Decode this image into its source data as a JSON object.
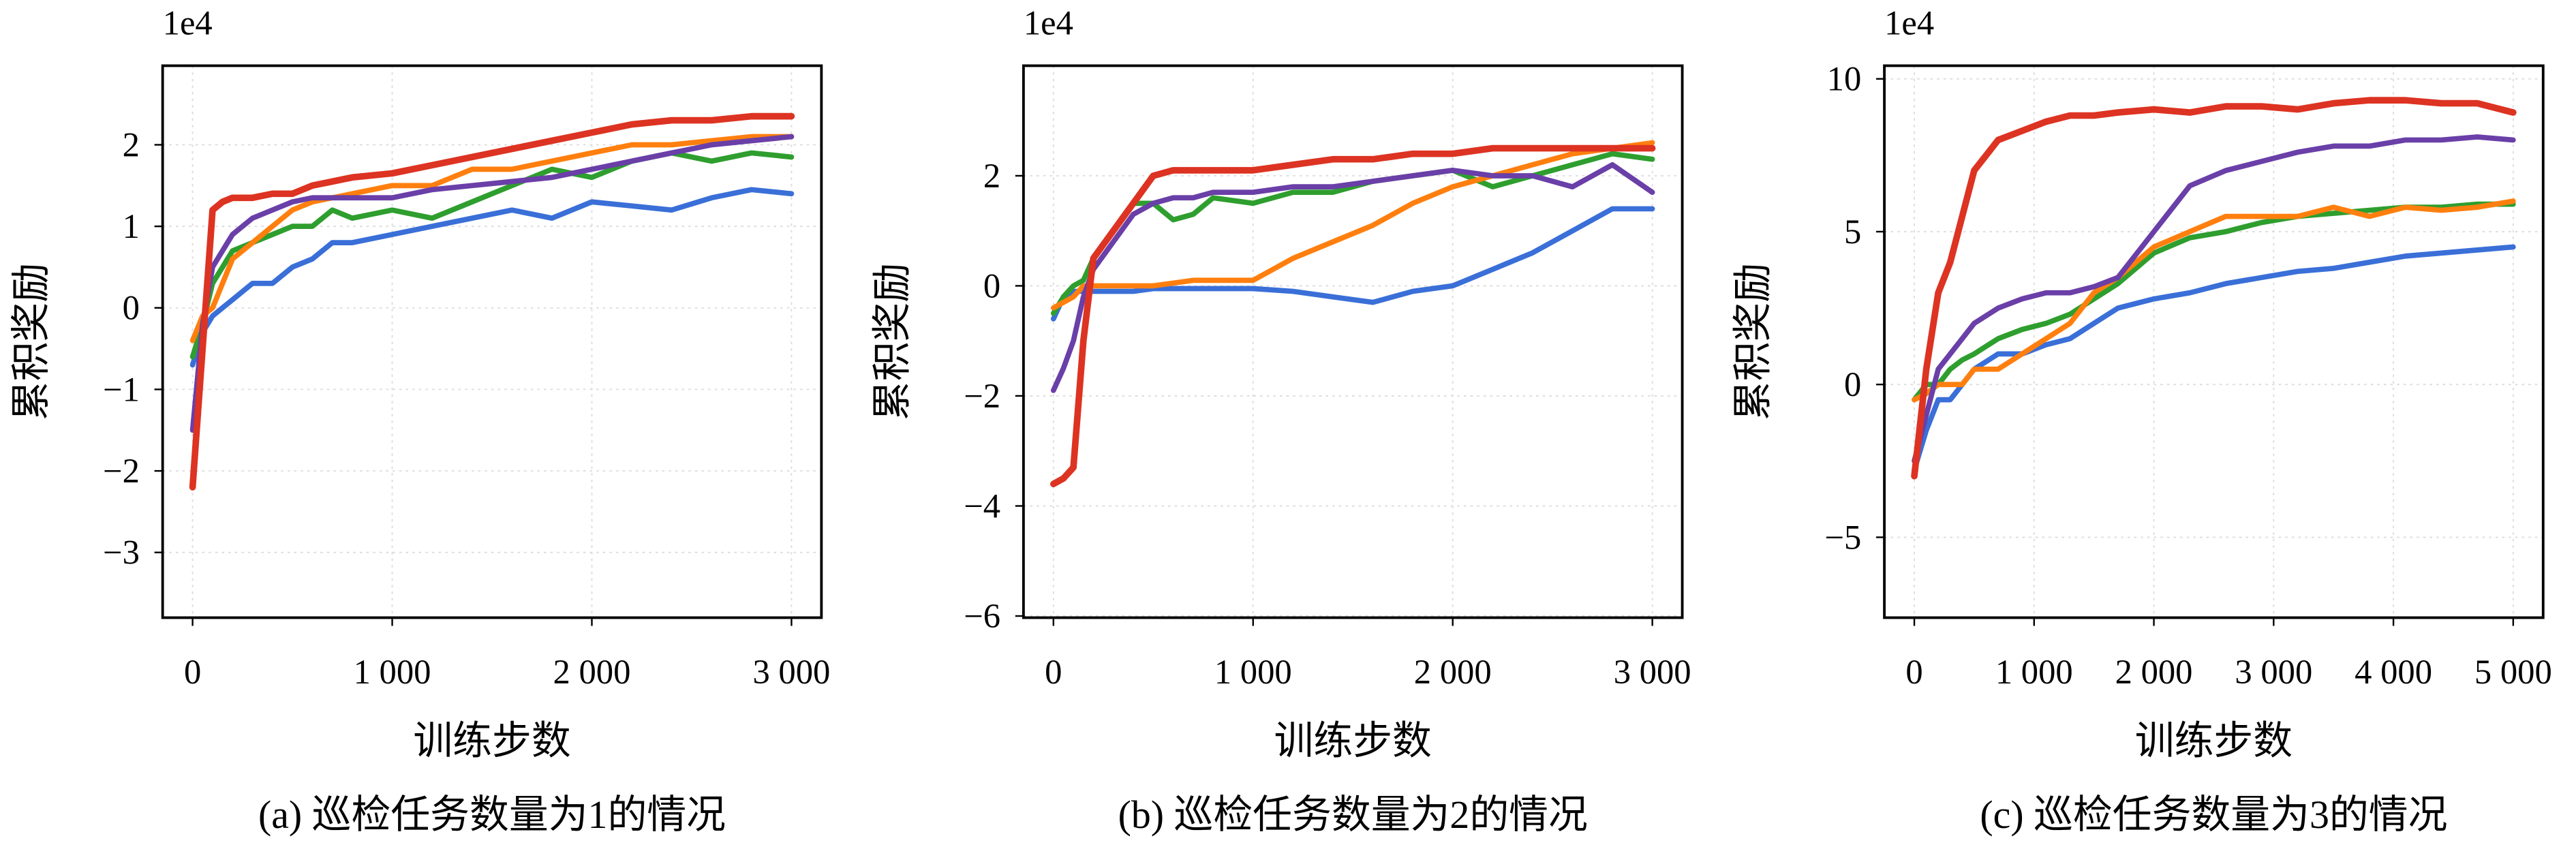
{
  "chart_data": [
    {
      "type": "line",
      "offset_label": "1e4",
      "y_label": "累积奖励",
      "x_label": "训练步数",
      "caption": "(a) 巡检任务数量为1的情况",
      "grid": true,
      "xlim": [
        -150,
        3150
      ],
      "ylim": [
        -3.8,
        2.97
      ],
      "xticks": [
        0,
        {
          "value": 1000,
          "label": "1 000"
        },
        {
          "value": 2000,
          "label": "2 000"
        },
        {
          "value": 3000,
          "label": "3 000"
        }
      ],
      "yticks": [
        {
          "value": -3,
          "label": "−3"
        },
        {
          "value": -2,
          "label": "−2"
        },
        {
          "value": -1,
          "label": "−1"
        },
        0,
        1,
        2
      ],
      "x": [
        0,
        50,
        100,
        150,
        200,
        300,
        400,
        500,
        600,
        700,
        800,
        1000,
        1200,
        1400,
        1600,
        1800,
        2000,
        2200,
        2400,
        2600,
        2800,
        3000
      ],
      "series": [
        {
          "color": "#3a6fd8",
          "values": [
            -0.7,
            -0.3,
            -0.1,
            0.0,
            0.1,
            0.3,
            0.3,
            0.5,
            0.6,
            0.8,
            0.8,
            0.9,
            1.0,
            1.1,
            1.2,
            1.1,
            1.3,
            1.25,
            1.2,
            1.35,
            1.45,
            1.4
          ]
        },
        {
          "color": "#2e9e2e",
          "values": [
            -0.6,
            -0.2,
            0.3,
            0.5,
            0.7,
            0.8,
            0.9,
            1.0,
            1.0,
            1.2,
            1.1,
            1.2,
            1.1,
            1.3,
            1.5,
            1.7,
            1.6,
            1.8,
            1.9,
            1.8,
            1.9,
            1.85
          ]
        },
        {
          "color": "#ff7f0e",
          "values": [
            -0.4,
            -0.1,
            0.0,
            0.3,
            0.6,
            0.8,
            1.0,
            1.2,
            1.3,
            1.35,
            1.4,
            1.5,
            1.5,
            1.7,
            1.7,
            1.8,
            1.9,
            2.0,
            2.0,
            2.05,
            2.1,
            2.1
          ]
        },
        {
          "color": "#6a3fa8",
          "values": [
            -1.5,
            -0.2,
            0.5,
            0.7,
            0.9,
            1.1,
            1.2,
            1.3,
            1.35,
            1.35,
            1.35,
            1.35,
            1.45,
            1.5,
            1.55,
            1.6,
            1.7,
            1.8,
            1.9,
            2.0,
            2.05,
            2.1
          ]
        },
        {
          "color": "#dd3322",
          "values": [
            -2.2,
            -0.5,
            1.2,
            1.3,
            1.35,
            1.35,
            1.4,
            1.4,
            1.5,
            1.55,
            1.6,
            1.65,
            1.75,
            1.85,
            1.95,
            2.05,
            2.15,
            2.25,
            2.3,
            2.3,
            2.35,
            2.35
          ]
        }
      ]
    },
    {
      "type": "line",
      "offset_label": "1e4",
      "y_label": "累积奖励",
      "x_label": "训练步数",
      "caption": "(b) 巡检任务数量为2的情况",
      "grid": true,
      "xlim": [
        -150,
        3150
      ],
      "ylim": [
        -6.03,
        4.0
      ],
      "xticks": [
        0,
        {
          "value": 1000,
          "label": "1 000"
        },
        {
          "value": 2000,
          "label": "2 000"
        },
        {
          "value": 3000,
          "label": "3 000"
        }
      ],
      "yticks": [
        {
          "value": -6,
          "label": "−6"
        },
        {
          "value": -4,
          "label": "−4"
        },
        {
          "value": -2,
          "label": "−2"
        },
        0,
        2
      ],
      "x": [
        0,
        50,
        100,
        150,
        200,
        300,
        400,
        500,
        600,
        700,
        800,
        1000,
        1200,
        1400,
        1600,
        1800,
        2000,
        2200,
        2400,
        2600,
        2800,
        3000
      ],
      "series": [
        {
          "color": "#3a6fd8",
          "values": [
            -0.6,
            -0.2,
            -0.1,
            -0.1,
            -0.1,
            -0.1,
            -0.1,
            -0.05,
            -0.05,
            -0.05,
            -0.05,
            -0.05,
            -0.1,
            -0.2,
            -0.3,
            -0.1,
            0.0,
            0.3,
            0.6,
            1.0,
            1.4,
            1.4
          ]
        },
        {
          "color": "#2e9e2e",
          "values": [
            -0.5,
            -0.2,
            0.0,
            0.1,
            0.5,
            1.0,
            1.5,
            1.5,
            1.2,
            1.3,
            1.6,
            1.5,
            1.7,
            1.7,
            1.9,
            2.0,
            2.1,
            1.8,
            2.0,
            2.2,
            2.4,
            2.3
          ]
        },
        {
          "color": "#ff7f0e",
          "values": [
            -0.4,
            -0.3,
            -0.2,
            0.0,
            0.0,
            0.0,
            0.0,
            0.0,
            0.05,
            0.1,
            0.1,
            0.1,
            0.5,
            0.8,
            1.1,
            1.5,
            1.8,
            2.0,
            2.2,
            2.4,
            2.5,
            2.6
          ]
        },
        {
          "color": "#6a3fa8",
          "values": [
            -1.9,
            -1.5,
            -1.0,
            -0.2,
            0.3,
            0.8,
            1.3,
            1.5,
            1.6,
            1.6,
            1.7,
            1.7,
            1.8,
            1.8,
            1.9,
            2.0,
            2.1,
            2.0,
            2.0,
            1.8,
            2.2,
            1.7
          ]
        },
        {
          "color": "#dd3322",
          "values": [
            -3.6,
            -3.5,
            -3.3,
            -1.0,
            0.5,
            1.0,
            1.5,
            2.0,
            2.1,
            2.1,
            2.1,
            2.1,
            2.2,
            2.3,
            2.3,
            2.4,
            2.4,
            2.5,
            2.5,
            2.5,
            2.5,
            2.5
          ]
        }
      ]
    },
    {
      "type": "line",
      "offset_label": "1e4",
      "y_label": "累积奖励",
      "x_label": "训练步数",
      "caption": "(c) 巡检任务数量为3的情况",
      "grid": true,
      "xlim": [
        -250,
        5250
      ],
      "ylim": [
        -7.63,
        10.43
      ],
      "xticks": [
        0,
        {
          "value": 1000,
          "label": "1 000"
        },
        {
          "value": 2000,
          "label": "2 000"
        },
        {
          "value": 3000,
          "label": "3 000"
        },
        {
          "value": 4000,
          "label": "4 000"
        },
        {
          "value": 5000,
          "label": "5 000"
        }
      ],
      "yticks": [
        {
          "value": -5,
          "label": "−5"
        },
        0,
        5,
        10
      ],
      "x": [
        0,
        100,
        200,
        300,
        400,
        500,
        700,
        900,
        1100,
        1300,
        1500,
        1700,
        2000,
        2300,
        2600,
        2900,
        3200,
        3500,
        3800,
        4100,
        4400,
        4700,
        5000
      ],
      "series": [
        {
          "color": "#3a6fd8",
          "values": [
            -2.8,
            -1.5,
            -0.5,
            -0.5,
            0.0,
            0.5,
            1.0,
            1.0,
            1.3,
            1.5,
            2.0,
            2.5,
            2.8,
            3.0,
            3.3,
            3.5,
            3.7,
            3.8,
            4.0,
            4.2,
            4.3,
            4.4,
            4.5
          ]
        },
        {
          "color": "#2e9e2e",
          "values": [
            -0.5,
            0.0,
            0.0,
            0.5,
            0.8,
            1.0,
            1.5,
            1.8,
            2.0,
            2.3,
            2.8,
            3.3,
            4.3,
            4.8,
            5.0,
            5.3,
            5.5,
            5.6,
            5.7,
            5.8,
            5.8,
            5.9,
            5.9
          ]
        },
        {
          "color": "#ff7f0e",
          "values": [
            -0.5,
            -0.3,
            0.0,
            0.0,
            0.0,
            0.5,
            0.5,
            1.0,
            1.5,
            2.0,
            3.0,
            3.5,
            4.5,
            5.0,
            5.5,
            5.5,
            5.5,
            5.8,
            5.5,
            5.8,
            5.7,
            5.8,
            6.0
          ]
        },
        {
          "color": "#6a3fa8",
          "values": [
            -2.5,
            -1.0,
            0.5,
            1.0,
            1.5,
            2.0,
            2.5,
            2.8,
            3.0,
            3.0,
            3.2,
            3.5,
            5.0,
            6.5,
            7.0,
            7.3,
            7.6,
            7.8,
            7.8,
            8.0,
            8.0,
            8.1,
            8.0
          ]
        },
        {
          "color": "#dd3322",
          "values": [
            -3.0,
            0.5,
            3.0,
            4.0,
            5.5,
            7.0,
            8.0,
            8.3,
            8.6,
            8.8,
            8.8,
            8.9,
            9.0,
            8.9,
            9.1,
            9.1,
            9.0,
            9.2,
            9.3,
            9.3,
            9.2,
            9.2,
            8.9
          ]
        }
      ]
    }
  ]
}
